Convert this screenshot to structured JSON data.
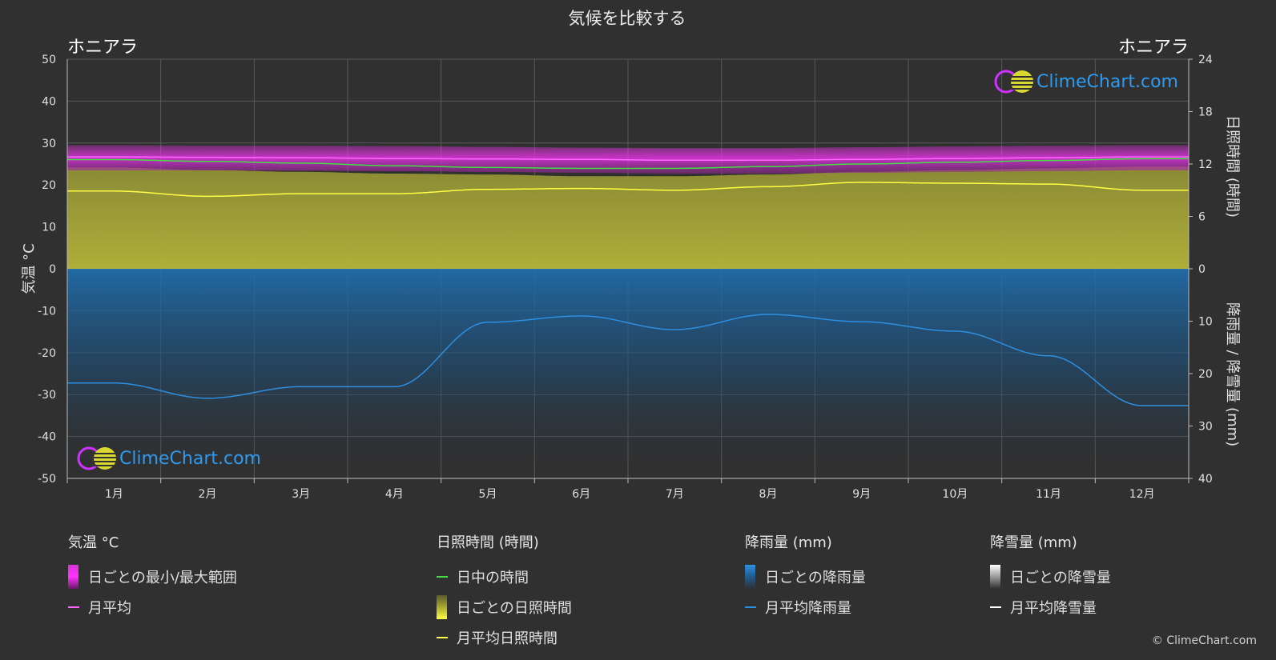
{
  "chart_data": {
    "type": "line",
    "title": "気候を比較する",
    "city_left": "ホニアラ",
    "city_right": "ホニアラ",
    "categories": [
      "1月",
      "2月",
      "3月",
      "4月",
      "5月",
      "6月",
      "7月",
      "8月",
      "9月",
      "10月",
      "11月",
      "12月"
    ],
    "axes": {
      "temp": {
        "label": "気温 °C",
        "range": [
          -50,
          50
        ],
        "ticks": [
          50,
          40,
          30,
          20,
          10,
          0,
          -10,
          -20,
          -30,
          -40,
          -50
        ]
      },
      "sunshine": {
        "label": "日照時間 (時間)",
        "range": [
          0,
          24
        ],
        "ticks": [
          24,
          18,
          12,
          6,
          0
        ]
      },
      "precip": {
        "label": "降雨量 / 降雪量 (mm)",
        "range": [
          0,
          40
        ],
        "ticks": [
          0,
          10,
          20,
          30,
          40
        ]
      }
    },
    "series": [
      {
        "name": "月平均",
        "axis": "temp",
        "color": "#ff66ff",
        "values": [
          26.7,
          26.6,
          26.5,
          26.3,
          26.2,
          26.1,
          25.9,
          25.9,
          26.1,
          26.3,
          26.5,
          26.7
        ]
      },
      {
        "name": "日中の時間",
        "axis": "sunshine",
        "color": "#44dd44",
        "values": [
          12.5,
          12.3,
          12.1,
          11.8,
          11.6,
          11.5,
          11.5,
          11.7,
          12.0,
          12.2,
          12.4,
          12.6
        ]
      },
      {
        "name": "月平均日照時間",
        "axis": "sunshine",
        "color": "#ffff44",
        "values": [
          8.9,
          8.3,
          8.6,
          8.6,
          9.1,
          9.2,
          9.0,
          9.4,
          9.9,
          9.8,
          9.7,
          9.0
        ]
      },
      {
        "name": "月平均降雨量",
        "axis": "precip",
        "color": "#2e8fe0",
        "values": [
          21.8,
          24.7,
          22.5,
          22.5,
          10.2,
          9.0,
          11.6,
          8.7,
          10.1,
          11.9,
          16.6,
          26.1
        ]
      }
    ],
    "bands": {
      "temp_max": [
        29.5,
        29.4,
        29.4,
        29.3,
        29.1,
        28.9,
        28.8,
        28.8,
        29.0,
        29.2,
        29.4,
        29.5
      ],
      "temp_min": [
        23.5,
        23.5,
        23.4,
        23.3,
        23.1,
        22.9,
        22.7,
        22.7,
        22.9,
        23.1,
        23.3,
        23.5
      ],
      "daily_sunshine": [
        11.6,
        11.3,
        11.1,
        10.9,
        10.8,
        10.6,
        10.6,
        10.8,
        11.1,
        11.3,
        11.5,
        11.7
      ]
    },
    "grid": true
  },
  "legend": {
    "groups": [
      {
        "title": "気温 °C",
        "items": [
          {
            "label": "日ごとの最小/最大範囲",
            "kind": "grad",
            "colors": [
              "#d633d6",
              "#ff33ff",
              "#661866"
            ]
          },
          {
            "label": "月平均",
            "kind": "line",
            "color": "#ff66ff"
          }
        ]
      },
      {
        "title": "日照時間 (時間)",
        "items": [
          {
            "label": "日中の時間",
            "kind": "line",
            "color": "#44dd44"
          },
          {
            "label": "日ごとの日照時間",
            "kind": "grad",
            "colors": [
              "#5a5a2a",
              "#a8a830",
              "#ffff44"
            ]
          },
          {
            "label": "月平均日照時間",
            "kind": "line",
            "color": "#ffff44"
          }
        ]
      },
      {
        "title": "降雨量 (mm)",
        "items": [
          {
            "label": "日ごとの降雨量",
            "kind": "grad",
            "colors": [
              "#2e8fe0",
              "#1f5c8c",
              "#303030"
            ]
          },
          {
            "label": "月平均降雨量",
            "kind": "line",
            "color": "#2e8fe0"
          }
        ]
      },
      {
        "title": "降雪量 (mm)",
        "items": [
          {
            "label": "日ごとの降雪量",
            "kind": "grad",
            "colors": [
              "#ffffff",
              "#999999",
              "#303030"
            ]
          },
          {
            "label": "月平均降雪量",
            "kind": "line",
            "color": "#ffffff"
          }
        ]
      }
    ]
  },
  "brand": {
    "name": "ClimeChart.com",
    "copyright": "© ClimeChart.com"
  }
}
